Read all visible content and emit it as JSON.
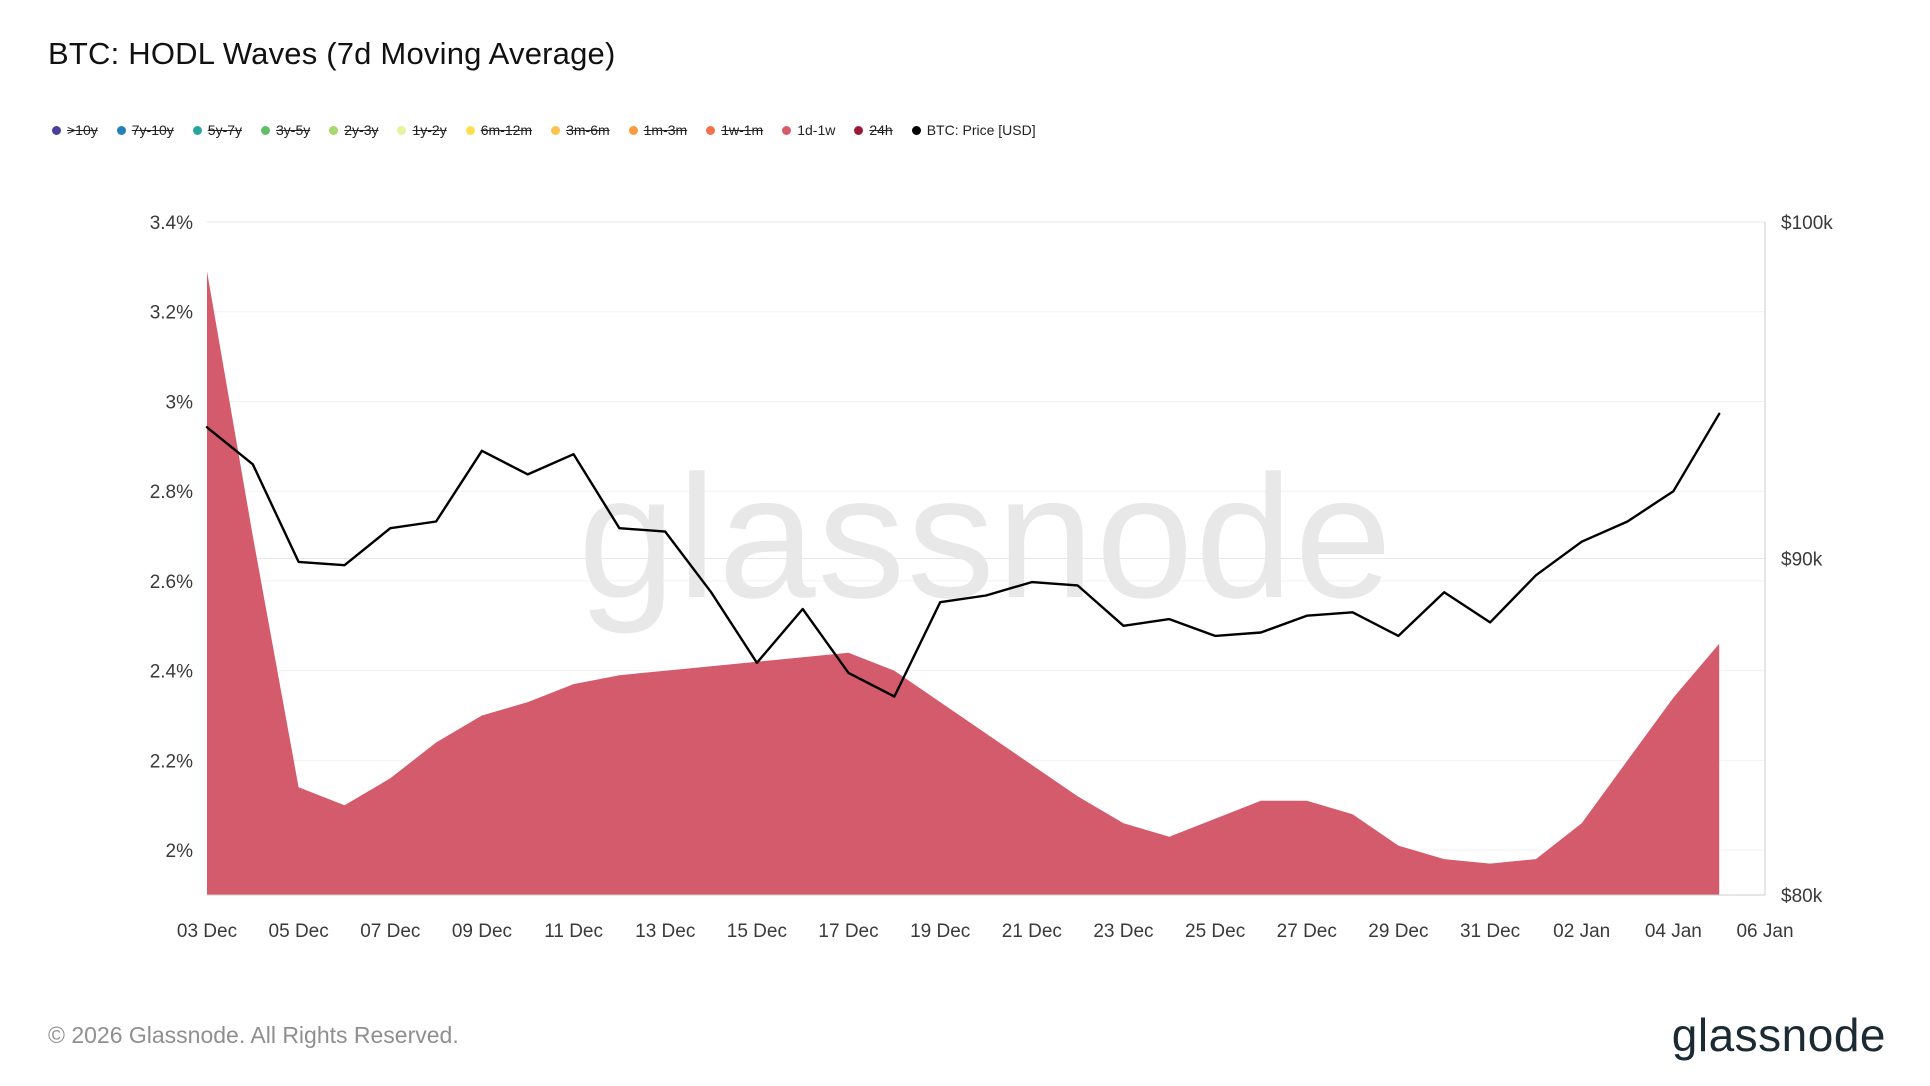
{
  "header": {
    "title": "BTC: HODL Waves (7d Moving Average)"
  },
  "legend": {
    "items": [
      {
        "label": ">10y",
        "color": "#4a3f99",
        "active": false
      },
      {
        "label": "7y-10y",
        "color": "#2380b8",
        "active": false
      },
      {
        "label": "5y-7y",
        "color": "#27a59c",
        "active": false
      },
      {
        "label": "3y-5y",
        "color": "#62bd69",
        "active": false
      },
      {
        "label": "2y-3y",
        "color": "#a5d96c",
        "active": false
      },
      {
        "label": "1y-2y",
        "color": "#e6f3a1",
        "active": false
      },
      {
        "label": "6m-12m",
        "color": "#fbdf51",
        "active": false
      },
      {
        "label": "3m-6m",
        "color": "#fbc34d",
        "active": false
      },
      {
        "label": "1m-3m",
        "color": "#fa9b3d",
        "active": false
      },
      {
        "label": "1w-1m",
        "color": "#f3704a",
        "active": false
      },
      {
        "label": "1d-1w",
        "color": "#d45b6c",
        "active": true
      },
      {
        "label": "24h",
        "color": "#991b38",
        "active": false
      },
      {
        "label": "BTC: Price [USD]",
        "color": "#000000",
        "active": true
      }
    ]
  },
  "chart_data": {
    "type": "area",
    "title": "BTC: HODL Waves (7d Moving Average)",
    "watermark": "glassnode",
    "grid": true,
    "legend_position": "top",
    "x": [
      "03 Dec",
      "04 Dec",
      "05 Dec",
      "06 Dec",
      "07 Dec",
      "08 Dec",
      "09 Dec",
      "10 Dec",
      "11 Dec",
      "12 Dec",
      "13 Dec",
      "14 Dec",
      "15 Dec",
      "16 Dec",
      "17 Dec",
      "18 Dec",
      "19 Dec",
      "20 Dec",
      "21 Dec",
      "22 Dec",
      "23 Dec",
      "24 Dec",
      "25 Dec",
      "26 Dec",
      "27 Dec",
      "28 Dec",
      "29 Dec",
      "30 Dec",
      "31 Dec",
      "01 Jan",
      "02 Jan",
      "03 Jan",
      "04 Jan",
      "05 Jan"
    ],
    "x_tick_labels": [
      "03 Dec",
      "05 Dec",
      "07 Dec",
      "09 Dec",
      "11 Dec",
      "13 Dec",
      "15 Dec",
      "17 Dec",
      "19 Dec",
      "21 Dec",
      "23 Dec",
      "25 Dec",
      "27 Dec",
      "29 Dec",
      "31 Dec",
      "02 Jan",
      "04 Jan",
      "06 Jan"
    ],
    "series": [
      {
        "name": "1d-1w",
        "type": "area",
        "axis": "left",
        "unit": "%",
        "color": "#d45b6c",
        "values": [
          3.29,
          2.7,
          2.14,
          2.1,
          2.16,
          2.24,
          2.3,
          2.33,
          2.37,
          2.39,
          2.4,
          2.41,
          2.42,
          2.43,
          2.44,
          2.4,
          2.33,
          2.26,
          2.19,
          2.12,
          2.06,
          2.03,
          2.07,
          2.11,
          2.11,
          2.08,
          2.01,
          1.98,
          1.97,
          1.98,
          2.06,
          2.2,
          2.34,
          2.46
        ]
      },
      {
        "name": "BTC: Price [USD]",
        "type": "line",
        "axis": "right",
        "unit": "kUSD",
        "color": "#000000",
        "values": [
          93.9,
          92.8,
          89.9,
          89.8,
          90.9,
          91.1,
          93.2,
          92.5,
          93.1,
          90.9,
          90.8,
          89.0,
          86.9,
          88.5,
          86.6,
          85.9,
          88.7,
          88.9,
          89.3,
          89.2,
          88.0,
          88.2,
          87.7,
          87.8,
          88.3,
          88.4,
          87.7,
          89.0,
          88.1,
          89.5,
          90.5,
          91.1,
          92.0,
          94.3
        ]
      }
    ],
    "left_axis": {
      "unit": "%",
      "min": 1.9,
      "max": 3.4,
      "tick_values": [
        3.4,
        3.2,
        3.0,
        2.8,
        2.6,
        2.4,
        2.2,
        2.0
      ],
      "tick_labels": [
        "3.4%",
        "3.2%",
        "3%",
        "2.8%",
        "2.6%",
        "2.4%",
        "2.2%",
        "2%"
      ]
    },
    "right_axis": {
      "unit": "kUSD",
      "min": 80,
      "max": 100,
      "tick_values": [
        100,
        90,
        80
      ],
      "tick_labels": [
        "$100k",
        "$90k",
        "$80k"
      ]
    }
  },
  "footer": {
    "copyright": "© 2026 Glassnode. All Rights Reserved.",
    "logo": "glassnode"
  }
}
